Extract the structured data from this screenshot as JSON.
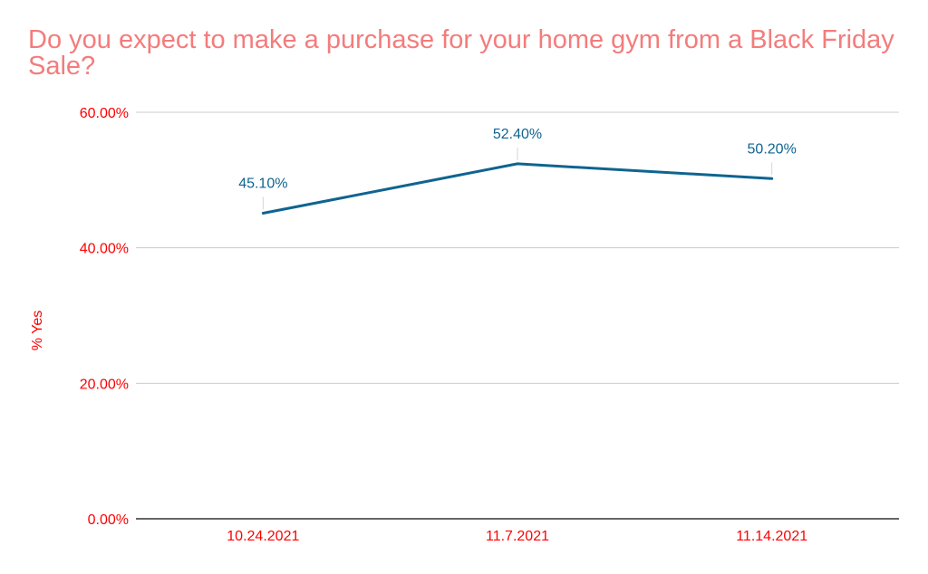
{
  "chart_data": {
    "type": "line",
    "title": "Do you expect to make a purchase for your home gym from a Black Friday Sale?",
    "xlabel": "",
    "ylabel": "% Yes",
    "categories": [
      "10.24.2021",
      "11.7.2021",
      "11.14.2021"
    ],
    "series": [
      {
        "values": [
          45.1,
          52.4,
          50.2
        ],
        "labels": [
          "45.10%",
          "52.40%",
          "50.20%"
        ],
        "color": "#0f6490"
      }
    ],
    "ylim": [
      0,
      60
    ],
    "yticks": [
      0,
      20,
      40,
      60
    ],
    "ytick_labels": [
      "0.00%",
      "20.00%",
      "40.00%",
      "60.00%"
    ],
    "grid": true,
    "legend": "none",
    "colors": {
      "title": "#f47c7c",
      "axis_text": "#ff0000",
      "gridline": "#cccccc",
      "baseline": "#333333",
      "line": "#0f6490"
    }
  }
}
